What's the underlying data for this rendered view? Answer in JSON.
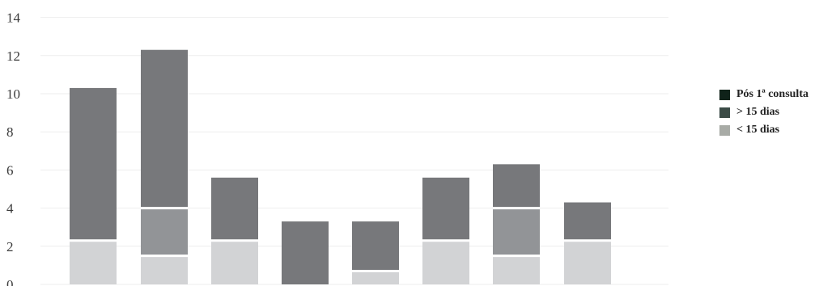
{
  "chart_data": {
    "type": "bar",
    "stacked": true,
    "categories": [
      "",
      "",
      "",
      "",
      "",
      "",
      "",
      ""
    ],
    "ylim": [
      0,
      14
    ],
    "yticks": [
      "0",
      "2",
      "4",
      "6",
      "8",
      "10",
      "12",
      "14"
    ],
    "grid": true,
    "legend_position": "right",
    "series": [
      {
        "name": "Pós 1ª consulta",
        "legend_color": "#0f2219",
        "values": [
          0,
          0,
          0,
          0,
          0,
          0,
          0,
          0
        ]
      },
      {
        "name": "> 15 dias",
        "legend_color": "#3b4b46",
        "values": [
          8,
          8.3,
          3.3,
          3.3,
          2.6,
          3.3,
          2.3,
          2
        ]
      },
      {
        "name": "< 15 dias",
        "legend_color": "#a8aba6",
        "values": [
          2.3,
          4,
          2.3,
          0,
          0.7,
          2.3,
          4,
          2.3
        ]
      }
    ],
    "inner_boundaries": [
      null,
      1.5,
      null,
      null,
      null,
      null,
      1.5,
      null
    ]
  },
  "colors": {
    "top_segment": "#77787b",
    "mid_segment": "#929497",
    "bottom_segment": "#d2d3d5",
    "gridline": "#eeeeee"
  }
}
